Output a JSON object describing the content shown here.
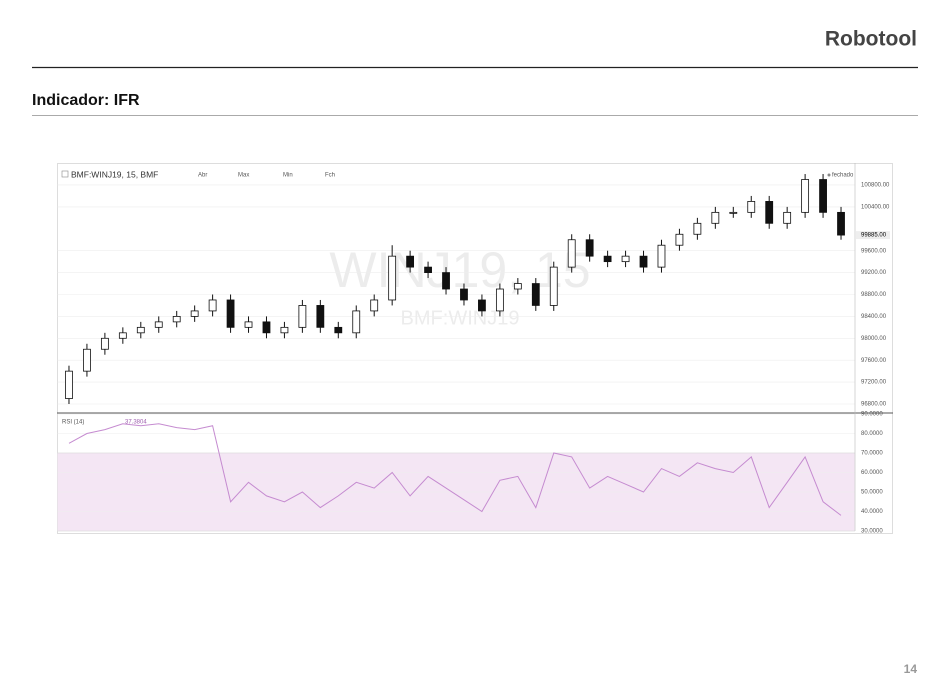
{
  "header": {
    "brand": "Robotool",
    "section_title": "Indicador: IFR",
    "page_number": "14"
  },
  "chart_data": [
    {
      "type": "candlestick",
      "title": "BMF:WINJ19, 15, BMF",
      "legend_labels": [
        "Abr",
        "Max",
        "Min",
        "Fch"
      ],
      "status": "fechado",
      "watermark": "WINJ19, 15",
      "watermark_subtitle": "BMF:WINJ19",
      "categories": [
        null,
        null,
        null,
        null,
        null,
        null,
        null,
        null,
        null,
        null,
        null,
        null,
        null,
        null,
        null,
        null,
        null,
        null,
        null,
        null,
        null,
        null,
        null,
        null,
        null,
        null,
        null,
        null,
        null,
        null,
        null,
        null,
        null,
        null,
        null,
        null,
        null,
        null,
        null,
        null,
        null,
        null,
        null,
        null
      ],
      "series": [
        {
          "up_color": "#ffffff",
          "down_color": "#111111",
          "open": [
            96900,
            97400,
            97800,
            98000,
            98100,
            98200,
            98300,
            98400,
            98500,
            98700,
            98200,
            98300,
            98100,
            98200,
            98600,
            98200,
            98100,
            98500,
            98700,
            99500,
            99300,
            99200,
            98900,
            98700,
            98500,
            98900,
            99000,
            98600,
            99300,
            99800,
            99500,
            99400,
            99500,
            99300,
            99700,
            99900,
            100100,
            100300,
            100300,
            100500,
            100100,
            100300,
            100900,
            100300
          ],
          "high": [
            97500,
            97900,
            98100,
            98200,
            98300,
            98400,
            98500,
            98600,
            98800,
            98800,
            98400,
            98400,
            98300,
            98700,
            98700,
            98300,
            98600,
            98800,
            99700,
            99600,
            99400,
            99300,
            99000,
            98800,
            99000,
            99100,
            99100,
            99400,
            99900,
            99900,
            99600,
            99600,
            99600,
            99800,
            100000,
            100200,
            100400,
            100400,
            100600,
            100600,
            100400,
            101000,
            101000,
            100400
          ],
          "low": [
            96800,
            97300,
            97700,
            97900,
            98000,
            98100,
            98200,
            98300,
            98400,
            98100,
            98100,
            98000,
            98000,
            98100,
            98100,
            98000,
            98000,
            98400,
            98600,
            99200,
            99100,
            98800,
            98600,
            98400,
            98400,
            98800,
            98500,
            98500,
            99200,
            99400,
            99300,
            99300,
            99200,
            99200,
            99600,
            99800,
            100000,
            100200,
            100200,
            100000,
            100000,
            100200,
            100200,
            99800
          ],
          "close": [
            97400,
            97800,
            98000,
            98100,
            98200,
            98300,
            98400,
            98500,
            98700,
            98200,
            98300,
            98100,
            98200,
            98600,
            98200,
            98100,
            98500,
            98700,
            99500,
            99300,
            99200,
            98900,
            98700,
            98500,
            98900,
            99000,
            98600,
            99300,
            99800,
            99500,
            99400,
            99500,
            99300,
            99700,
            99900,
            100100,
            100300,
            100300,
            100500,
            100100,
            100300,
            100900,
            100300,
            99885
          ]
        }
      ],
      "last_price": {
        "value": 99885,
        "label": "99885.00"
      },
      "ylim": [
        96654,
        101165
      ],
      "yticks": [
        {
          "value": 96800,
          "label": "96800.00"
        },
        {
          "value": 97200,
          "label": "97200.00"
        },
        {
          "value": 97600,
          "label": "97600.00"
        },
        {
          "value": 98000,
          "label": "98000.00"
        },
        {
          "value": 98400,
          "label": "98400.00"
        },
        {
          "value": 98800,
          "label": "98800.00"
        },
        {
          "value": 99200,
          "label": "99200.00"
        },
        {
          "value": 99600,
          "label": "99600.00"
        },
        {
          "value": 100400,
          "label": "100400.00"
        },
        {
          "value": 100800,
          "label": "100800.00"
        }
      ],
      "grid": true
    },
    {
      "type": "line",
      "title": "RSI (14)",
      "current_value": "37.3804",
      "series": [
        {
          "color": "#c58bd0",
          "values": [
            75,
            80,
            82,
            85,
            84,
            85,
            83,
            82,
            84,
            45,
            55,
            48,
            45,
            50,
            42,
            48,
            55,
            52,
            60,
            48,
            58,
            52,
            46,
            40,
            56,
            58,
            42,
            70,
            68,
            52,
            58,
            54,
            50,
            62,
            58,
            65,
            62,
            60,
            68,
            42,
            55,
            68,
            45,
            38
          ]
        }
      ],
      "band": [
        30,
        70
      ],
      "band_color": "#f4e6f4",
      "ylim": [
        30,
        90
      ],
      "yticks": [
        {
          "value": 30,
          "label": "30.0000"
        },
        {
          "value": 40,
          "label": "40.0000"
        },
        {
          "value": 50,
          "label": "50.0000"
        },
        {
          "value": 60,
          "label": "60.0000"
        },
        {
          "value": 70,
          "label": "70.0000"
        },
        {
          "value": 80,
          "label": "80.0000"
        },
        {
          "value": 90,
          "label": "90.0000"
        }
      ],
      "grid": true
    }
  ]
}
